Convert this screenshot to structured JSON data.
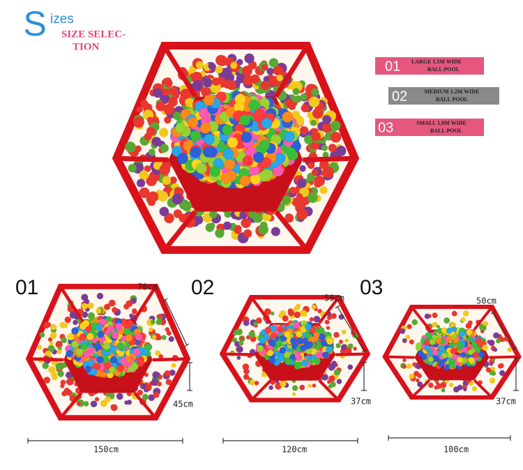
{
  "header": {
    "initial": "S",
    "rest": "izes",
    "subtitle_lines": [
      "SIZE SELEC-",
      "TION"
    ]
  },
  "options": [
    {
      "number": "01",
      "lines": [
        "LARGE 1.5M WIDE",
        "BALL POOL"
      ]
    },
    {
      "number": "02",
      "lines": [
        "MEDIUM 1.2M WIDE",
        "BALL POOL"
      ]
    },
    {
      "number": "03",
      "lines": [
        "SMALL 1.0M WIDE",
        "BALL POOL"
      ]
    }
  ],
  "products": [
    {
      "number": "01",
      "depth": "78cm",
      "height": "45cm",
      "width": "150cm"
    },
    {
      "number": "02",
      "depth": "59cm",
      "height": "37cm",
      "width": "120cm"
    },
    {
      "number": "03",
      "depth": "50cm",
      "height": "37cm",
      "width": "100cm"
    }
  ]
}
